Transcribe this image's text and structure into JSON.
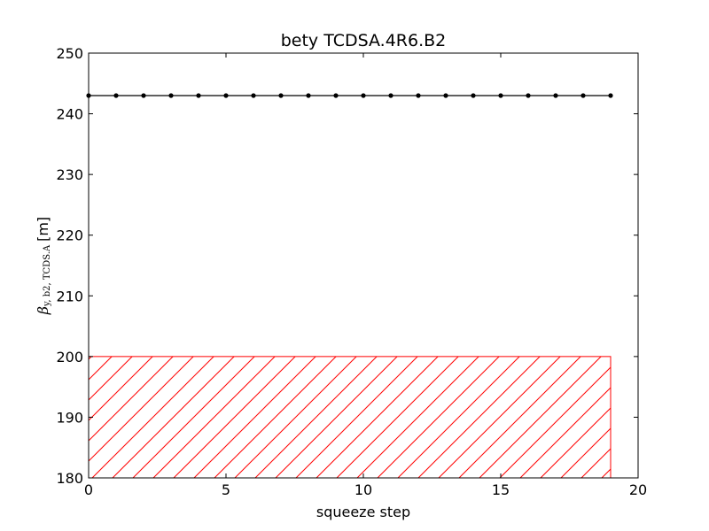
{
  "chart_data": {
    "type": "line",
    "title": "bety TCDSA.4R6.B2",
    "xlabel": "squeeze step",
    "ylabel": {
      "symbol": "β",
      "subscript": "y, b2, TCDS.A",
      "unit": "[m]"
    },
    "xlim": [
      0,
      20
    ],
    "ylim": [
      180,
      250
    ],
    "xticks": [
      0,
      5,
      10,
      15,
      20
    ],
    "yticks": [
      180,
      190,
      200,
      210,
      220,
      230,
      240,
      250
    ],
    "grid": false,
    "series": [
      {
        "x": [
          0,
          1,
          2,
          3,
          4,
          5,
          6,
          7,
          8,
          9,
          10,
          11,
          12,
          13,
          14,
          15,
          16,
          17,
          18,
          19
        ],
        "y": [
          243,
          243,
          243,
          243,
          243,
          243,
          243,
          243,
          243,
          243,
          243,
          243,
          243,
          243,
          243,
          243,
          243,
          243,
          243,
          243
        ],
        "color": "#000000",
        "marker": "dot"
      }
    ],
    "hatched_region": {
      "x": [
        0,
        19
      ],
      "y": [
        180,
        200
      ],
      "color": "#ff0000",
      "pattern": "diagonal-hatch"
    }
  }
}
